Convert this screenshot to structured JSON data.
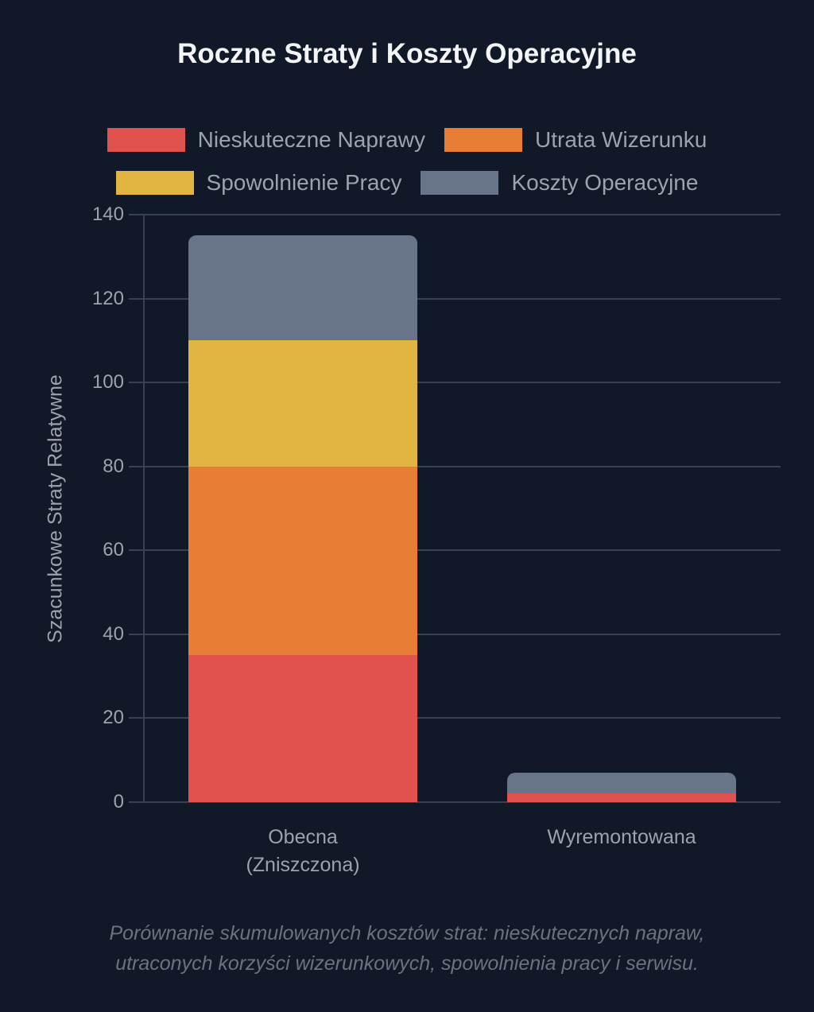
{
  "chart_data": {
    "type": "bar",
    "stacked": true,
    "title": "Roczne Straty i Koszty Operacyjne",
    "xlabel": "",
    "ylabel": "Szacunkowe Straty Relatywne",
    "ylim": [
      0,
      140
    ],
    "yticks": [
      0,
      20,
      40,
      60,
      80,
      100,
      120,
      140
    ],
    "grid": true,
    "legend_position": "top",
    "categories": [
      "Obecna (Zniszczona)",
      "Wyremontowana"
    ],
    "category_lines": [
      [
        "Obecna",
        "(Zniszczona)"
      ],
      [
        "Wyremontowana"
      ]
    ],
    "series": [
      {
        "name": "Nieskuteczne Naprawy",
        "color": "#e0524d",
        "values": [
          35,
          2
        ]
      },
      {
        "name": "Utrata Wizerunku",
        "color": "#e87d35",
        "values": [
          45,
          0
        ]
      },
      {
        "name": "Spowolnienie Pracy",
        "color": "#e1b542",
        "values": [
          30,
          0
        ]
      },
      {
        "name": "Koszty Operacyjne",
        "color": "#687489",
        "values": [
          25,
          5
        ]
      }
    ],
    "caption_lines": [
      "Porównanie skumulowanych kosztów strat: nieskutecznych napraw,",
      "utraconych korzyści wizerunkowych, spowolnienia pracy i serwisu."
    ]
  }
}
